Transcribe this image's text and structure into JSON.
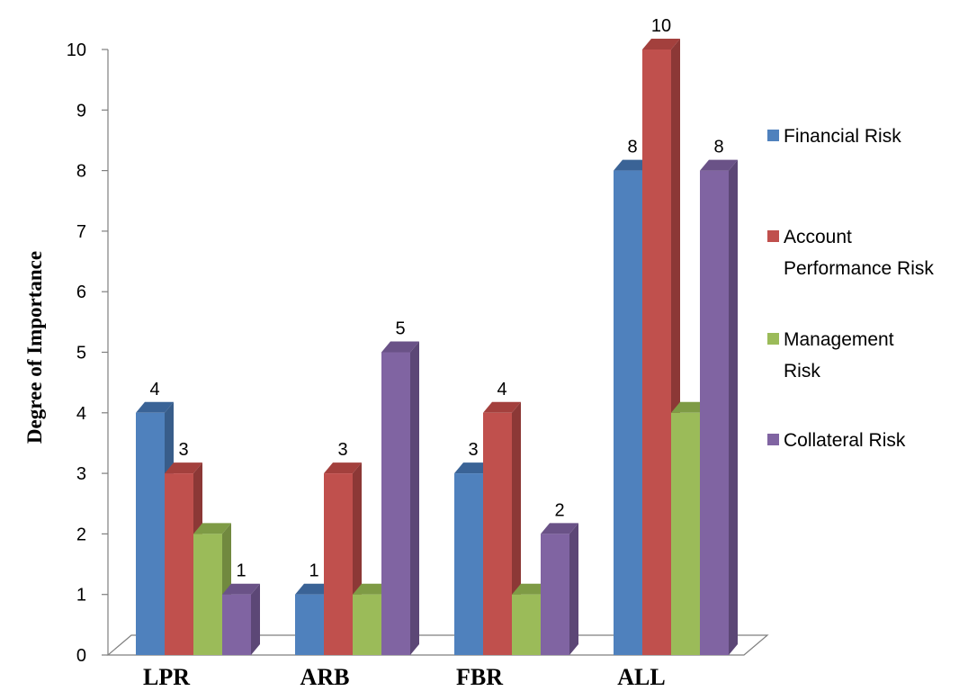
{
  "chart_data": {
    "type": "bar",
    "title": "",
    "xlabel": "",
    "ylabel": "Degree of Importance",
    "ylim": [
      0,
      10
    ],
    "yticks": [
      "0",
      "1",
      "2",
      "3",
      "4",
      "5",
      "6",
      "7",
      "8",
      "9",
      "10"
    ],
    "categories": [
      "LPR",
      "ARB",
      "FBR",
      "ALL"
    ],
    "series": [
      {
        "name": "Financial Risk",
        "values": [
          4,
          1,
          3,
          8
        ],
        "labels": [
          "4",
          "1",
          "3",
          "8"
        ],
        "color": "#4F81BD",
        "side": "#385D8A",
        "top": "#3A6396"
      },
      {
        "name": "Account Performance Risk",
        "values": [
          3,
          3,
          4,
          10
        ],
        "labels": [
          "3",
          "3",
          "4",
          "10"
        ],
        "color": "#C0504D",
        "side": "#8C3836",
        "top": "#A3403D"
      },
      {
        "name": "Management Risk",
        "values": [
          2,
          1,
          1,
          4
        ],
        "labels": [
          "",
          "",
          "",
          ""
        ],
        "color": "#9BBB59",
        "side": "#71893F",
        "top": "#7E9B45"
      },
      {
        "name": "Collateral Risk",
        "values": [
          1,
          5,
          2,
          8
        ],
        "labels": [
          "1",
          "5",
          "2",
          "8"
        ],
        "color": "#8064A2",
        "side": "#5C4776",
        "top": "#6A5287"
      }
    ],
    "legend": {
      "position": "right",
      "lines": [
        [
          "Financial Risk"
        ],
        [
          "Account",
          "Performance Risk"
        ],
        [
          "Management",
          "Risk"
        ],
        [
          "Collateral Risk"
        ]
      ]
    },
    "grid": false,
    "style": "3d-clustered-column"
  }
}
